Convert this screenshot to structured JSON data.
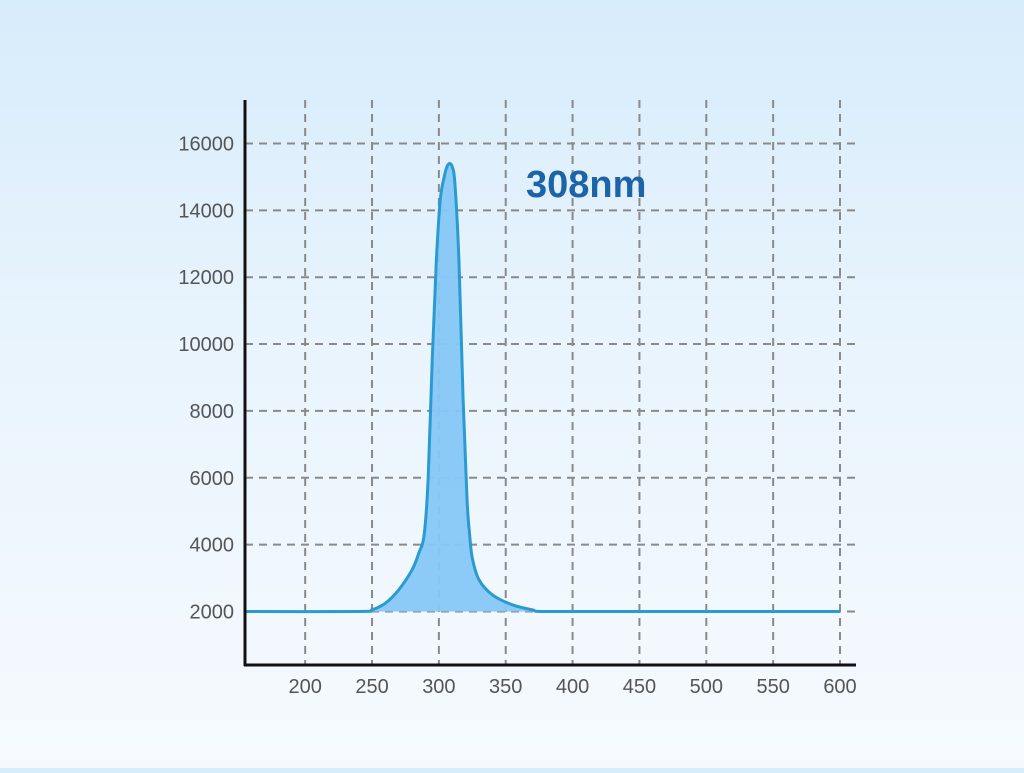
{
  "chart_data": {
    "type": "area",
    "title": "",
    "xlabel": "",
    "ylabel": "",
    "annotation": "308nm",
    "xlim": [
      155,
      600
    ],
    "ylim": [
      400,
      17300
    ],
    "x_ticks": [
      200,
      250,
      300,
      350,
      400,
      450,
      500,
      550,
      600
    ],
    "y_ticks": [
      2000,
      4000,
      6000,
      8000,
      10000,
      12000,
      14000,
      16000
    ],
    "grid": true,
    "series": [
      {
        "x": [
          155,
          240,
          250,
          260,
          270,
          280,
          285,
          289,
          292,
          295,
          298,
          301,
          304,
          306,
          308,
          310,
          312,
          315,
          318,
          321,
          323,
          325,
          330,
          340,
          355,
          370,
          380,
          450,
          600
        ],
        "y": [
          2000,
          2000,
          2050,
          2250,
          2650,
          3250,
          3750,
          4300,
          6000,
          9500,
          12400,
          14300,
          15000,
          15300,
          15400,
          15300,
          14800,
          12500,
          8500,
          5400,
          4300,
          3600,
          2950,
          2500,
          2200,
          2050,
          2000,
          2000,
          2000
        ]
      }
    ],
    "colors": {
      "fill": "#86c7f7",
      "line": "#2a9bd0",
      "annotation": "#1d63a8",
      "grid": "#8a8a8a",
      "axis": "#111111",
      "tick_label": "#555555"
    }
  }
}
